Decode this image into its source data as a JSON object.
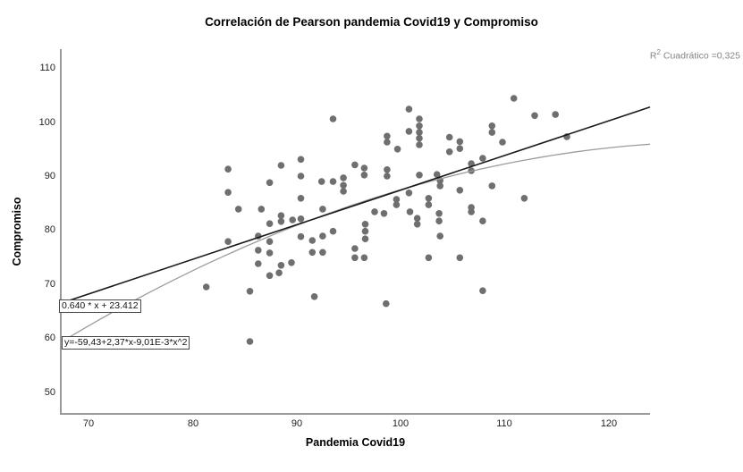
{
  "annotation": {
    "r2_base": "R",
    "r2_sup": "2",
    "r2_rest": " Cuadrático =0,325"
  },
  "chart_data": {
    "type": "scatter",
    "title": "Correlación de Pearson pandemia Covid19 y Compromiso",
    "xlabel": "Pandemia Covid19",
    "ylabel": "Compromiso",
    "x_ticks": [
      70,
      80,
      90,
      100,
      110,
      120
    ],
    "y_ticks": [
      110,
      100,
      90,
      80,
      70,
      60,
      50
    ],
    "xlim": [
      67.3,
      124.0
    ],
    "ylim": [
      46.0,
      113.5
    ],
    "grid": false,
    "legend": "none",
    "point_color": "#6f6f6f",
    "axis_color": "#9a9a9a",
    "r2_label": "R2 Cuadrático =0,325",
    "fits": [
      {
        "name": "linear",
        "label": "0.640 * x + 23.412",
        "coeffs": {
          "intercept": 23.412,
          "x": 0.64,
          "x2": 0
        },
        "color": "#1a1a1a"
      },
      {
        "name": "quadratic",
        "label": "y=-59,43+2,37*x-9,01E-3*x^2",
        "coeffs": {
          "intercept": -59.43,
          "x": 2.37,
          "x2": -0.00901
        },
        "color": "#9c9c9c"
      }
    ],
    "points": [
      [
        83.4,
        91.3
      ],
      [
        83.4,
        87.0
      ],
      [
        84.4,
        83.9
      ],
      [
        86.6,
        83.9
      ],
      [
        87.4,
        88.8
      ],
      [
        88.5,
        92.0
      ],
      [
        88.5,
        82.7
      ],
      [
        88.5,
        81.6
      ],
      [
        89.6,
        81.9
      ],
      [
        90.4,
        93.1
      ],
      [
        90.4,
        90.0
      ],
      [
        90.4,
        85.9
      ],
      [
        90.4,
        82.1
      ],
      [
        92.5,
        83.9
      ],
      [
        93.5,
        100.6
      ],
      [
        100.8,
        102.4
      ],
      [
        101.8,
        100.6
      ],
      [
        101.8,
        99.3
      ],
      [
        101.8,
        98.1
      ],
      [
        101.8,
        97.0
      ],
      [
        101.8,
        95.8
      ],
      [
        100.8,
        98.3
      ],
      [
        98.7,
        97.4
      ],
      [
        98.7,
        96.3
      ],
      [
        99.7,
        95.0
      ],
      [
        104.7,
        97.2
      ],
      [
        104.7,
        94.5
      ],
      [
        105.7,
        96.4
      ],
      [
        105.7,
        95.1
      ],
      [
        95.6,
        92.1
      ],
      [
        96.5,
        91.5
      ],
      [
        96.5,
        90.2
      ],
      [
        93.5,
        89.0
      ],
      [
        94.5,
        89.7
      ],
      [
        94.5,
        88.3
      ],
      [
        94.5,
        87.2
      ],
      [
        92.4,
        89.0
      ],
      [
        98.7,
        91.2
      ],
      [
        98.7,
        90.0
      ],
      [
        101.8,
        90.2
      ],
      [
        103.5,
        90.3
      ],
      [
        103.8,
        89.2
      ],
      [
        103.8,
        88.2
      ],
      [
        100.8,
        86.9
      ],
      [
        99.6,
        85.7
      ],
      [
        99.6,
        84.7
      ],
      [
        102.7,
        85.9
      ],
      [
        102.7,
        84.7
      ],
      [
        97.5,
        83.4
      ],
      [
        98.4,
        83.1
      ],
      [
        100.9,
        83.4
      ],
      [
        101.6,
        82.2
      ],
      [
        101.6,
        81.1
      ],
      [
        103.7,
        83.1
      ],
      [
        103.7,
        81.7
      ],
      [
        105.7,
        87.4
      ],
      [
        106.8,
        92.3
      ],
      [
        106.8,
        91.0
      ],
      [
        106.8,
        84.2
      ],
      [
        106.8,
        83.4
      ],
      [
        110.9,
        104.4
      ],
      [
        112.9,
        101.2
      ],
      [
        114.9,
        101.4
      ],
      [
        108.8,
        99.3
      ],
      [
        108.8,
        98.1
      ],
      [
        109.8,
        96.3
      ],
      [
        116.0,
        97.3
      ],
      [
        107.9,
        93.3
      ],
      [
        108.8,
        88.2
      ],
      [
        111.9,
        85.9
      ],
      [
        107.9,
        81.7
      ],
      [
        87.4,
        81.2
      ],
      [
        83.4,
        77.9
      ],
      [
        86.3,
        78.9
      ],
      [
        86.3,
        76.3
      ],
      [
        87.4,
        77.9
      ],
      [
        87.4,
        75.8
      ],
      [
        86.3,
        73.8
      ],
      [
        88.5,
        73.5
      ],
      [
        89.5,
        74.0
      ],
      [
        87.4,
        71.6
      ],
      [
        88.3,
        72.1
      ],
      [
        90.4,
        78.8
      ],
      [
        91.5,
        78.1
      ],
      [
        92.5,
        78.9
      ],
      [
        91.5,
        75.9
      ],
      [
        92.5,
        75.9
      ],
      [
        81.3,
        69.5
      ],
      [
        85.5,
        68.7
      ],
      [
        91.7,
        67.7
      ],
      [
        85.5,
        59.4
      ],
      [
        93.5,
        79.8
      ],
      [
        96.6,
        81.1
      ],
      [
        96.6,
        79.8
      ],
      [
        96.6,
        78.4
      ],
      [
        95.6,
        76.6
      ],
      [
        95.6,
        74.9
      ],
      [
        96.5,
        74.9
      ],
      [
        103.8,
        78.9
      ],
      [
        102.7,
        74.9
      ],
      [
        105.7,
        74.9
      ],
      [
        98.6,
        66.4
      ],
      [
        107.9,
        68.8
      ]
    ]
  }
}
